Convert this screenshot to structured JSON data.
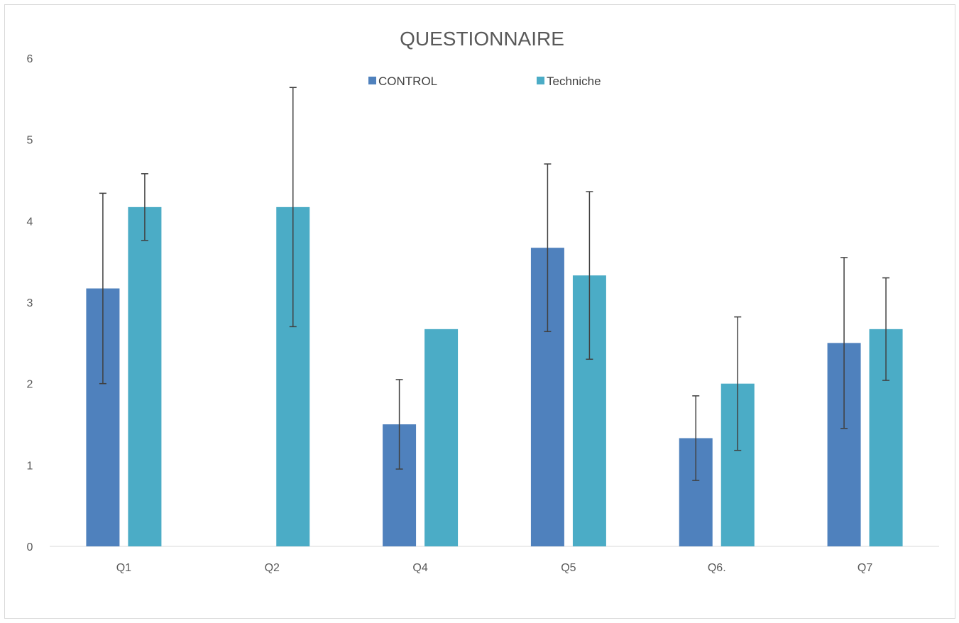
{
  "chart_data": {
    "type": "bar",
    "title": "QUESTIONNAIRE",
    "xlabel": "",
    "ylabel": "",
    "categories": [
      "Q1",
      "Q2",
      "Q4",
      "Q5",
      "Q6.",
      "Q7"
    ],
    "ylim": [
      0,
      6
    ],
    "yticks": [
      "0",
      "1",
      "2",
      "3",
      "4",
      "5",
      "6"
    ],
    "grid": false,
    "legend": "top",
    "series": [
      {
        "name": "CONTROL",
        "color": "#4f81bd",
        "values": [
          3.17,
          0,
          1.5,
          3.67,
          1.33,
          2.5
        ],
        "error": [
          1.17,
          null,
          0.55,
          1.03,
          0.52,
          1.05
        ]
      },
      {
        "name": "Techniche",
        "color": "#4bacc6",
        "values": [
          4.17,
          4.17,
          2.67,
          3.33,
          2.0,
          2.67
        ],
        "error": [
          0.41,
          1.47,
          null,
          1.03,
          0.82,
          0.63
        ]
      }
    ]
  }
}
